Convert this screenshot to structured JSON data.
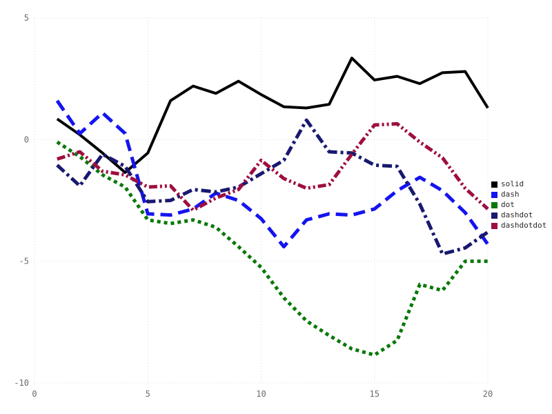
{
  "chart_data": {
    "type": "line",
    "x": [
      1,
      2,
      3,
      4,
      5,
      6,
      7,
      8,
      9,
      10,
      11,
      12,
      13,
      14,
      15,
      16,
      17,
      18,
      19,
      20
    ],
    "series": [
      {
        "name": "solid",
        "color": "#000000",
        "dash": "solid",
        "width": 4,
        "values": [
          0.85,
          0.2,
          -0.55,
          -1.35,
          -0.55,
          1.6,
          2.2,
          1.9,
          2.4,
          1.85,
          1.35,
          1.3,
          1.45,
          3.35,
          2.45,
          2.6,
          2.3,
          2.75,
          2.8,
          1.3
        ]
      },
      {
        "name": "dash",
        "color": "#1414f0",
        "dash": "dash",
        "width": 5,
        "values": [
          1.6,
          0.25,
          1.1,
          0.25,
          -3.05,
          -3.1,
          -2.85,
          -2.2,
          -2.5,
          -3.25,
          -4.4,
          -3.3,
          -3.05,
          -3.1,
          -2.85,
          -2.1,
          -1.55,
          -2.1,
          -3.0,
          -4.3
        ]
      },
      {
        "name": "dot",
        "color": "#077807",
        "dash": "dot",
        "width": 5,
        "values": [
          -0.1,
          -0.7,
          -1.45,
          -1.95,
          -3.3,
          -3.45,
          -3.3,
          -3.6,
          -4.4,
          -5.25,
          -6.5,
          -7.45,
          -8.05,
          -8.6,
          -8.85,
          -8.25,
          -5.95,
          -6.2,
          -5.0,
          -5.0
        ]
      },
      {
        "name": "dashdot",
        "color": "#191970",
        "dash": "dashdot",
        "width": 5,
        "values": [
          -1.05,
          -1.9,
          -0.6,
          -1.1,
          -2.55,
          -2.5,
          -2.05,
          -2.15,
          -1.95,
          -1.4,
          -0.85,
          0.8,
          -0.5,
          -0.55,
          -1.05,
          -1.1,
          -2.65,
          -4.7,
          -4.45,
          -3.8
        ]
      },
      {
        "name": "dashdotdot",
        "color": "#9e0e40",
        "dash": "dashdotdot",
        "width": 5,
        "values": [
          -0.8,
          -0.5,
          -1.3,
          -1.45,
          -1.95,
          -1.9,
          -2.9,
          -2.4,
          -2.05,
          -0.85,
          -1.6,
          -2.0,
          -1.85,
          -0.6,
          0.6,
          0.65,
          -0.1,
          -0.75,
          -2.0,
          -2.85
        ]
      }
    ],
    "title": "",
    "xlabel": "",
    "ylabel": "",
    "xlim": [
      0,
      20
    ],
    "ylim": [
      -10,
      5
    ],
    "xticks": [
      "0",
      "5",
      "10",
      "15",
      "20"
    ],
    "xtick_values": [
      0,
      5,
      10,
      15,
      20
    ],
    "yticks": [
      "5",
      "0",
      "-5",
      "-10"
    ],
    "ytick_values": [
      5,
      0,
      -5,
      -10
    ],
    "grid": "dotted",
    "grid_color": "#dcdcdc",
    "legend_position": "right"
  },
  "legend": {
    "items": [
      {
        "label": "solid",
        "color": "#000000"
      },
      {
        "label": "dash",
        "color": "#1414f0"
      },
      {
        "label": "dot",
        "color": "#077807"
      },
      {
        "label": "dashdot",
        "color": "#191970"
      },
      {
        "label": "dashdotdot",
        "color": "#9e0e40"
      }
    ]
  }
}
